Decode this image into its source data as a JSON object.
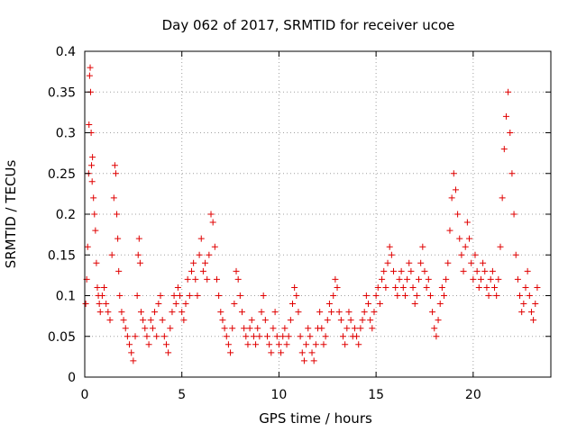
{
  "chart_data": {
    "type": "scatter",
    "title": "Day 062 of 2017, SRMTID for receiver ucoe",
    "xlabel": "GPS time / hours",
    "ylabel": "SRMTID / TECUs",
    "xlim": [
      0,
      24
    ],
    "ylim": [
      0,
      0.4
    ],
    "xticks": [
      0,
      5,
      10,
      15,
      20
    ],
    "yticks": [
      0,
      0.05,
      0.1,
      0.15,
      0.2,
      0.25,
      0.3,
      0.35,
      0.4
    ],
    "xtick_labels": [
      "0",
      "5",
      "10",
      "15",
      "20"
    ],
    "ytick_labels": [
      "0",
      "0.05",
      "0.1",
      "0.15",
      "0.2",
      "0.25",
      "0.3",
      "0.35",
      "0.4"
    ],
    "grid": true,
    "marker": "plus",
    "color": "#e00000",
    "series": [
      {
        "name": "SRMTID",
        "points": [
          [
            0.05,
            0.09
          ],
          [
            0.1,
            0.12
          ],
          [
            0.15,
            0.16
          ],
          [
            0.2,
            0.25
          ],
          [
            0.22,
            0.31
          ],
          [
            0.25,
            0.37
          ],
          [
            0.28,
            0.38
          ],
          [
            0.3,
            0.35
          ],
          [
            0.33,
            0.3
          ],
          [
            0.35,
            0.26
          ],
          [
            0.38,
            0.24
          ],
          [
            0.4,
            0.27
          ],
          [
            0.45,
            0.22
          ],
          [
            0.5,
            0.2
          ],
          [
            0.55,
            0.18
          ],
          [
            0.6,
            0.14
          ],
          [
            0.65,
            0.11
          ],
          [
            0.7,
            0.1
          ],
          [
            0.75,
            0.09
          ],
          [
            0.8,
            0.08
          ],
          [
            0.9,
            0.1
          ],
          [
            1.0,
            0.11
          ],
          [
            1.1,
            0.09
          ],
          [
            1.2,
            0.08
          ],
          [
            1.3,
            0.07
          ],
          [
            1.4,
            0.15
          ],
          [
            1.5,
            0.22
          ],
          [
            1.55,
            0.26
          ],
          [
            1.6,
            0.25
          ],
          [
            1.65,
            0.2
          ],
          [
            1.7,
            0.17
          ],
          [
            1.75,
            0.13
          ],
          [
            1.8,
            0.1
          ],
          [
            1.9,
            0.08
          ],
          [
            2.0,
            0.07
          ],
          [
            2.1,
            0.06
          ],
          [
            2.2,
            0.05
          ],
          [
            2.3,
            0.04
          ],
          [
            2.4,
            0.03
          ],
          [
            2.5,
            0.02
          ],
          [
            2.6,
            0.05
          ],
          [
            2.7,
            0.1
          ],
          [
            2.75,
            0.15
          ],
          [
            2.8,
            0.17
          ],
          [
            2.85,
            0.14
          ],
          [
            2.9,
            0.08
          ],
          [
            3.0,
            0.07
          ],
          [
            3.1,
            0.06
          ],
          [
            3.2,
            0.05
          ],
          [
            3.3,
            0.04
          ],
          [
            3.4,
            0.07
          ],
          [
            3.5,
            0.06
          ],
          [
            3.6,
            0.08
          ],
          [
            3.7,
            0.05
          ],
          [
            3.8,
            0.09
          ],
          [
            3.9,
            0.1
          ],
          [
            4.0,
            0.07
          ],
          [
            4.1,
            0.05
          ],
          [
            4.2,
            0.04
          ],
          [
            4.3,
            0.03
          ],
          [
            4.4,
            0.06
          ],
          [
            4.5,
            0.08
          ],
          [
            4.6,
            0.1
          ],
          [
            4.7,
            0.09
          ],
          [
            4.8,
            0.11
          ],
          [
            4.9,
            0.1
          ],
          [
            5.0,
            0.08
          ],
          [
            5.1,
            0.07
          ],
          [
            5.2,
            0.09
          ],
          [
            5.3,
            0.12
          ],
          [
            5.4,
            0.1
          ],
          [
            5.5,
            0.13
          ],
          [
            5.6,
            0.14
          ],
          [
            5.7,
            0.12
          ],
          [
            5.8,
            0.1
          ],
          [
            5.9,
            0.15
          ],
          [
            6.0,
            0.17
          ],
          [
            6.1,
            0.13
          ],
          [
            6.2,
            0.14
          ],
          [
            6.3,
            0.12
          ],
          [
            6.4,
            0.15
          ],
          [
            6.5,
            0.2
          ],
          [
            6.6,
            0.19
          ],
          [
            6.7,
            0.16
          ],
          [
            6.8,
            0.12
          ],
          [
            6.9,
            0.1
          ],
          [
            7.0,
            0.08
          ],
          [
            7.1,
            0.07
          ],
          [
            7.2,
            0.06
          ],
          [
            7.3,
            0.05
          ],
          [
            7.4,
            0.04
          ],
          [
            7.5,
            0.03
          ],
          [
            7.6,
            0.06
          ],
          [
            7.7,
            0.09
          ],
          [
            7.8,
            0.13
          ],
          [
            7.9,
            0.12
          ],
          [
            8.0,
            0.1
          ],
          [
            8.1,
            0.08
          ],
          [
            8.2,
            0.06
          ],
          [
            8.3,
            0.05
          ],
          [
            8.4,
            0.04
          ],
          [
            8.5,
            0.06
          ],
          [
            8.6,
            0.07
          ],
          [
            8.7,
            0.05
          ],
          [
            8.8,
            0.04
          ],
          [
            8.9,
            0.06
          ],
          [
            9.0,
            0.05
          ],
          [
            9.1,
            0.08
          ],
          [
            9.2,
            0.1
          ],
          [
            9.3,
            0.07
          ],
          [
            9.4,
            0.05
          ],
          [
            9.5,
            0.04
          ],
          [
            9.6,
            0.03
          ],
          [
            9.7,
            0.06
          ],
          [
            9.8,
            0.08
          ],
          [
            9.9,
            0.05
          ],
          [
            10.0,
            0.04
          ],
          [
            10.1,
            0.03
          ],
          [
            10.2,
            0.05
          ],
          [
            10.3,
            0.06
          ],
          [
            10.4,
            0.04
          ],
          [
            10.5,
            0.05
          ],
          [
            10.6,
            0.07
          ],
          [
            10.7,
            0.09
          ],
          [
            10.8,
            0.11
          ],
          [
            10.9,
            0.1
          ],
          [
            11.0,
            0.08
          ],
          [
            11.1,
            0.05
          ],
          [
            11.2,
            0.03
          ],
          [
            11.3,
            0.02
          ],
          [
            11.4,
            0.04
          ],
          [
            11.5,
            0.06
          ],
          [
            11.6,
            0.05
          ],
          [
            11.7,
            0.03
          ],
          [
            11.8,
            0.02
          ],
          [
            11.9,
            0.04
          ],
          [
            12.0,
            0.06
          ],
          [
            12.1,
            0.08
          ],
          [
            12.2,
            0.06
          ],
          [
            12.3,
            0.04
          ],
          [
            12.4,
            0.05
          ],
          [
            12.5,
            0.07
          ],
          [
            12.6,
            0.09
          ],
          [
            12.7,
            0.08
          ],
          [
            12.8,
            0.1
          ],
          [
            12.9,
            0.12
          ],
          [
            13.0,
            0.11
          ],
          [
            13.1,
            0.08
          ],
          [
            13.2,
            0.07
          ],
          [
            13.3,
            0.05
          ],
          [
            13.4,
            0.04
          ],
          [
            13.5,
            0.06
          ],
          [
            13.6,
            0.08
          ],
          [
            13.7,
            0.07
          ],
          [
            13.8,
            0.05
          ],
          [
            13.9,
            0.06
          ],
          [
            14.0,
            0.05
          ],
          [
            14.1,
            0.04
          ],
          [
            14.2,
            0.06
          ],
          [
            14.3,
            0.07
          ],
          [
            14.4,
            0.08
          ],
          [
            14.5,
            0.1
          ],
          [
            14.6,
            0.09
          ],
          [
            14.7,
            0.07
          ],
          [
            14.8,
            0.06
          ],
          [
            14.9,
            0.08
          ],
          [
            15.0,
            0.1
          ],
          [
            15.1,
            0.11
          ],
          [
            15.2,
            0.09
          ],
          [
            15.3,
            0.12
          ],
          [
            15.4,
            0.13
          ],
          [
            15.5,
            0.11
          ],
          [
            15.6,
            0.14
          ],
          [
            15.7,
            0.16
          ],
          [
            15.8,
            0.15
          ],
          [
            15.9,
            0.13
          ],
          [
            16.0,
            0.11
          ],
          [
            16.1,
            0.1
          ],
          [
            16.2,
            0.12
          ],
          [
            16.3,
            0.13
          ],
          [
            16.4,
            0.11
          ],
          [
            16.5,
            0.1
          ],
          [
            16.6,
            0.12
          ],
          [
            16.7,
            0.14
          ],
          [
            16.8,
            0.13
          ],
          [
            16.9,
            0.11
          ],
          [
            17.0,
            0.09
          ],
          [
            17.1,
            0.1
          ],
          [
            17.2,
            0.12
          ],
          [
            17.3,
            0.14
          ],
          [
            17.4,
            0.16
          ],
          [
            17.5,
            0.13
          ],
          [
            17.6,
            0.11
          ],
          [
            17.7,
            0.12
          ],
          [
            17.8,
            0.1
          ],
          [
            17.9,
            0.08
          ],
          [
            18.0,
            0.06
          ],
          [
            18.1,
            0.05
          ],
          [
            18.2,
            0.07
          ],
          [
            18.3,
            0.09
          ],
          [
            18.4,
            0.11
          ],
          [
            18.5,
            0.1
          ],
          [
            18.6,
            0.12
          ],
          [
            18.7,
            0.14
          ],
          [
            18.8,
            0.18
          ],
          [
            18.9,
            0.22
          ],
          [
            19.0,
            0.25
          ],
          [
            19.1,
            0.23
          ],
          [
            19.2,
            0.2
          ],
          [
            19.3,
            0.17
          ],
          [
            19.4,
            0.15
          ],
          [
            19.5,
            0.13
          ],
          [
            19.6,
            0.16
          ],
          [
            19.7,
            0.19
          ],
          [
            19.8,
            0.17
          ],
          [
            19.9,
            0.14
          ],
          [
            20.0,
            0.12
          ],
          [
            20.1,
            0.15
          ],
          [
            20.2,
            0.13
          ],
          [
            20.3,
            0.11
          ],
          [
            20.4,
            0.12
          ],
          [
            20.5,
            0.14
          ],
          [
            20.6,
            0.13
          ],
          [
            20.7,
            0.11
          ],
          [
            20.8,
            0.1
          ],
          [
            20.9,
            0.12
          ],
          [
            21.0,
            0.13
          ],
          [
            21.1,
            0.11
          ],
          [
            21.2,
            0.1
          ],
          [
            21.3,
            0.12
          ],
          [
            21.4,
            0.16
          ],
          [
            21.5,
            0.22
          ],
          [
            21.6,
            0.28
          ],
          [
            21.7,
            0.32
          ],
          [
            21.8,
            0.35
          ],
          [
            21.9,
            0.3
          ],
          [
            22.0,
            0.25
          ],
          [
            22.1,
            0.2
          ],
          [
            22.2,
            0.15
          ],
          [
            22.3,
            0.12
          ],
          [
            22.4,
            0.1
          ],
          [
            22.5,
            0.08
          ],
          [
            22.6,
            0.09
          ],
          [
            22.7,
            0.11
          ],
          [
            22.8,
            0.13
          ],
          [
            22.9,
            0.1
          ],
          [
            23.0,
            0.08
          ],
          [
            23.1,
            0.07
          ],
          [
            23.2,
            0.09
          ],
          [
            23.3,
            0.11
          ]
        ]
      }
    ]
  }
}
